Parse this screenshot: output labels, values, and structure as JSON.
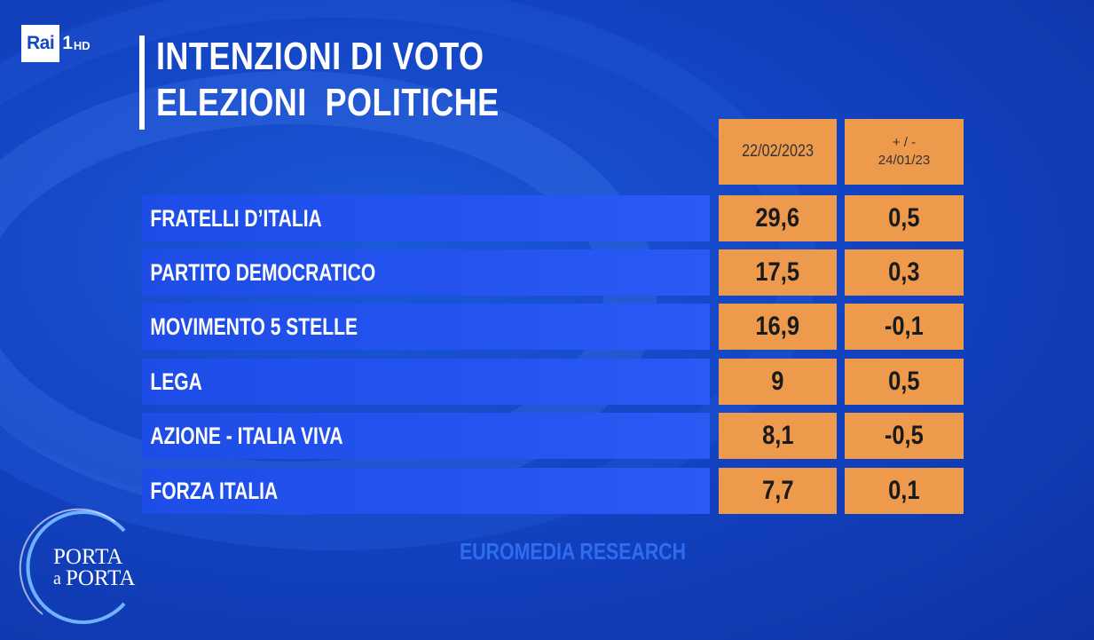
{
  "channel": {
    "brand": "Rai",
    "number": "1",
    "quality": "HD"
  },
  "title": {
    "line1": "INTENZIONI DI VOTO",
    "line2": "ELEZIONI  POLITICHE"
  },
  "columns": {
    "date": "22/02/2023",
    "diff_line1": "+ / -",
    "diff_line2": "24/01/23"
  },
  "rows": [
    {
      "party": "FRATELLI D’ITALIA",
      "value": "29,6",
      "diff": "0,5"
    },
    {
      "party": "PARTITO DEMOCRATICO",
      "value": "17,5",
      "diff": "0,3"
    },
    {
      "party": "MOVIMENTO 5 STELLE",
      "value": "16,9",
      "diff": "-0,1"
    },
    {
      "party": "LEGA",
      "value": "9",
      "diff": "0,5"
    },
    {
      "party": "AZIONE - ITALIA VIVA",
      "value": "8,1",
      "diff": "-0,5"
    },
    {
      "party": "FORZA ITALIA",
      "value": "7,7",
      "diff": "0,1"
    }
  ],
  "source": "EUROMEDIA RESEARCH",
  "show_logo": {
    "line1": "PORTA",
    "line2": "a",
    "line3": "PORTA"
  },
  "colors": {
    "background": "#1447c8",
    "cell_orange": "#ee9a4d",
    "party_bar": "#2453f0",
    "source_text": "#2f6cf0"
  }
}
